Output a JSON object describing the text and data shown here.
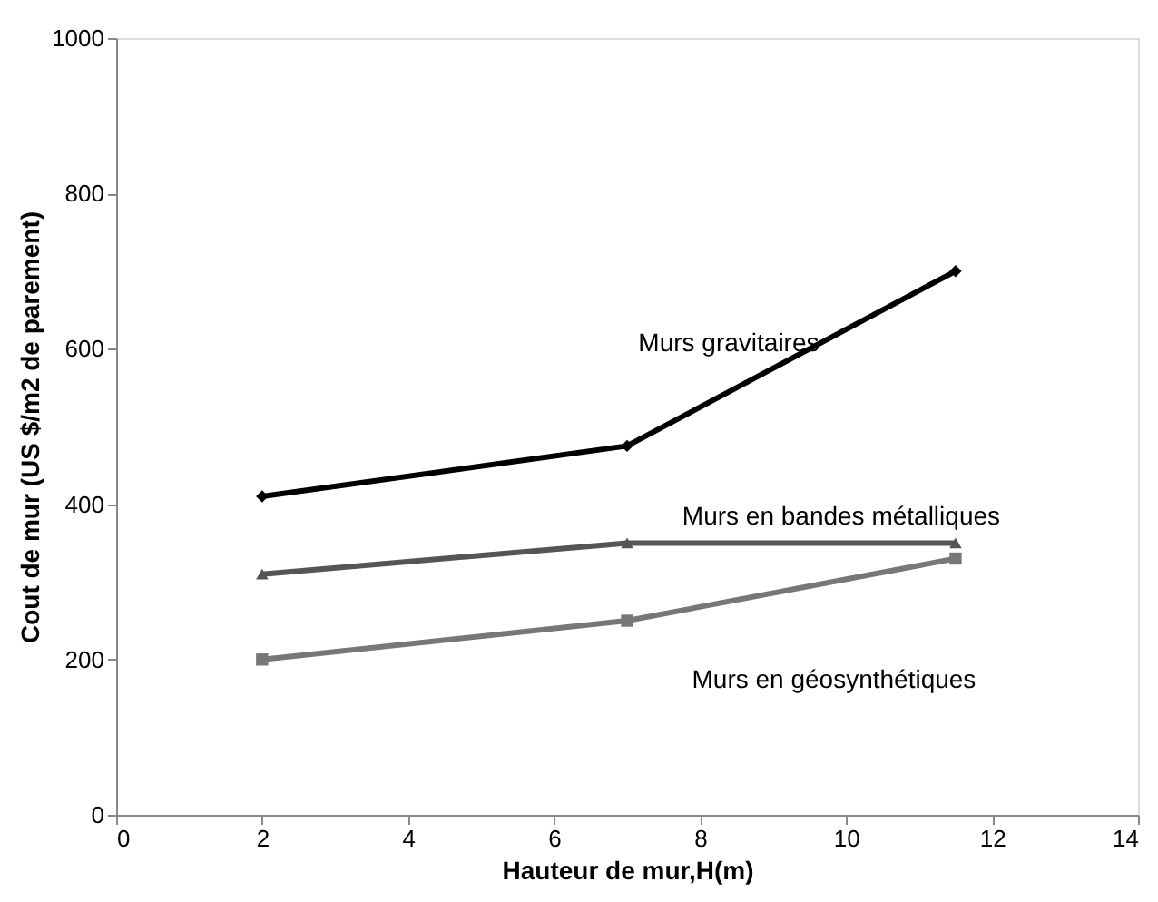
{
  "chart_data": {
    "type": "line",
    "xlabel": "Hauteur de mur,H(m)",
    "ylabel": "Cout de  mur (US $/m2 de parement)",
    "xlim": [
      0,
      14
    ],
    "xticks": [
      0,
      2,
      4,
      6,
      8,
      10,
      12,
      14
    ],
    "ylim": [
      0,
      1000
    ],
    "yticks": [
      0,
      200,
      400,
      600,
      800,
      1000
    ],
    "grid": false,
    "x": [
      2,
      7,
      11.5
    ],
    "series": [
      {
        "name": "Murs gravitaires",
        "color": "#000000",
        "marker": "diamond",
        "values": [
          410,
          475,
          700
        ]
      },
      {
        "name": "Murs en bandes métalliques",
        "color": "#555555",
        "marker": "triangle",
        "values": [
          310,
          350,
          350
        ]
      },
      {
        "name": "Murs en géosynthétiques",
        "color": "#777777",
        "marker": "square",
        "values": [
          200,
          250,
          330
        ]
      }
    ]
  }
}
